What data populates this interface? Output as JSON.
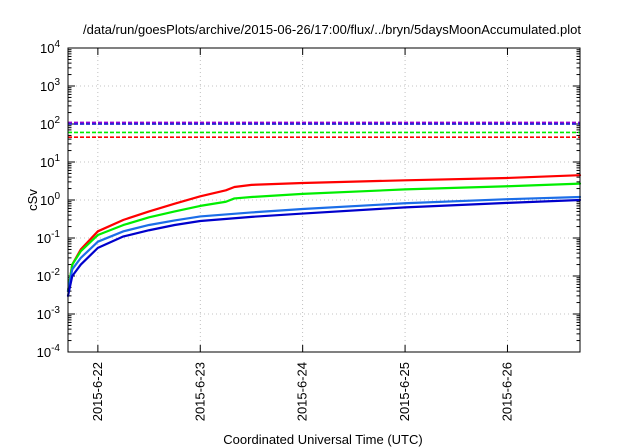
{
  "chart_data": {
    "type": "line",
    "title": "/data/run/goesPlots/archive/2015-06-26/17:00/flux/../bryn/5daysMoonAccumulated.plot",
    "xlabel": "Coordinated Universal Time (UTC)",
    "ylabel": "cSv",
    "x_axis": {
      "type": "time",
      "range": [
        "2015-06-21 17:00",
        "2015-06-26 17:00"
      ],
      "ticks": [
        "2015-6-22",
        "2015-6-23",
        "2015-6-24",
        "2015-6-25",
        "2015-6-26"
      ]
    },
    "y_axis": {
      "scale": "log",
      "ylim": [
        0.0001,
        10000
      ]
    },
    "y_ticks": [
      {
        "base": "10",
        "exp": "4",
        "value": 10000
      },
      {
        "base": "10",
        "exp": "3",
        "value": 1000
      },
      {
        "base": "10",
        "exp": "2",
        "value": 100
      },
      {
        "base": "10",
        "exp": "1",
        "value": 10
      },
      {
        "base": "10",
        "exp": "0",
        "value": 1
      },
      {
        "base": "10",
        "exp": "-1",
        "value": 0.1
      },
      {
        "base": "10",
        "exp": "-2",
        "value": 0.01
      },
      {
        "base": "10",
        "exp": "-3",
        "value": 0.001
      },
      {
        "base": "10",
        "exp": "-4",
        "value": 0.0001
      }
    ],
    "grid": true,
    "legend": false,
    "series": [
      {
        "color": "#ff0000",
        "style": "solid",
        "points": [
          [
            "2015-06-21 17:00",
            0.004
          ],
          [
            "2015-06-21 18:00",
            0.02
          ],
          [
            "2015-06-21 20:00",
            0.05
          ],
          [
            "2015-06-22 00:00",
            0.15
          ],
          [
            "2015-06-22 06:00",
            0.3
          ],
          [
            "2015-06-22 12:00",
            0.5
          ],
          [
            "2015-06-22 18:00",
            0.8
          ],
          [
            "2015-06-23 00:00",
            1.25
          ],
          [
            "2015-06-23 06:00",
            1.8
          ],
          [
            "2015-06-23 08:00",
            2.2
          ],
          [
            "2015-06-23 12:00",
            2.5
          ],
          [
            "2015-06-24 00:00",
            2.8
          ],
          [
            "2015-06-25 00:00",
            3.3
          ],
          [
            "2015-06-26 00:00",
            3.8
          ],
          [
            "2015-06-26 17:00",
            4.5
          ]
        ]
      },
      {
        "color": "#00ee00",
        "style": "solid",
        "points": [
          [
            "2015-06-21 17:00",
            0.004
          ],
          [
            "2015-06-21 18:00",
            0.02
          ],
          [
            "2015-06-21 20:00",
            0.045
          ],
          [
            "2015-06-22 00:00",
            0.12
          ],
          [
            "2015-06-22 06:00",
            0.22
          ],
          [
            "2015-06-22 12:00",
            0.35
          ],
          [
            "2015-06-22 18:00",
            0.5
          ],
          [
            "2015-06-23 00:00",
            0.7
          ],
          [
            "2015-06-23 06:00",
            0.9
          ],
          [
            "2015-06-23 08:00",
            1.1
          ],
          [
            "2015-06-23 12:00",
            1.2
          ],
          [
            "2015-06-24 00:00",
            1.45
          ],
          [
            "2015-06-25 00:00",
            1.9
          ],
          [
            "2015-06-26 00:00",
            2.3
          ],
          [
            "2015-06-26 17:00",
            2.7
          ]
        ]
      },
      {
        "color": "#1c6ee8",
        "style": "solid",
        "points": [
          [
            "2015-06-21 17:00",
            0.004
          ],
          [
            "2015-06-21 18:00",
            0.015
          ],
          [
            "2015-06-21 20:00",
            0.03
          ],
          [
            "2015-06-22 00:00",
            0.08
          ],
          [
            "2015-06-22 06:00",
            0.15
          ],
          [
            "2015-06-22 12:00",
            0.22
          ],
          [
            "2015-06-22 18:00",
            0.29
          ],
          [
            "2015-06-23 00:00",
            0.37
          ],
          [
            "2015-06-23 12:00",
            0.47
          ],
          [
            "2015-06-24 00:00",
            0.58
          ],
          [
            "2015-06-25 00:00",
            0.82
          ],
          [
            "2015-06-26 00:00",
            1.05
          ],
          [
            "2015-06-26 17:00",
            1.2
          ]
        ]
      },
      {
        "color": "#0000cc",
        "style": "solid",
        "points": [
          [
            "2015-06-21 17:00",
            0.003
          ],
          [
            "2015-06-21 18:00",
            0.01
          ],
          [
            "2015-06-21 20:00",
            0.02
          ],
          [
            "2015-06-22 00:00",
            0.055
          ],
          [
            "2015-06-22 06:00",
            0.11
          ],
          [
            "2015-06-22 12:00",
            0.16
          ],
          [
            "2015-06-22 18:00",
            0.22
          ],
          [
            "2015-06-23 00:00",
            0.28
          ],
          [
            "2015-06-23 12:00",
            0.36
          ],
          [
            "2015-06-24 00:00",
            0.44
          ],
          [
            "2015-06-25 00:00",
            0.64
          ],
          [
            "2015-06-26 00:00",
            0.84
          ],
          [
            "2015-06-26 17:00",
            1.0
          ]
        ]
      },
      {
        "color": "#9400d3",
        "style": "dashed",
        "points": [
          [
            "2015-06-21 17:00",
            110
          ],
          [
            "2015-06-26 17:00",
            110
          ]
        ]
      },
      {
        "color": "#0000cc",
        "style": "dashed",
        "points": [
          [
            "2015-06-21 17:00",
            100
          ],
          [
            "2015-06-26 17:00",
            100
          ]
        ]
      },
      {
        "color": "#00ee00",
        "style": "dashed",
        "points": [
          [
            "2015-06-21 17:00",
            60
          ],
          [
            "2015-06-26 17:00",
            60
          ]
        ]
      },
      {
        "color": "#ff0000",
        "style": "dashed",
        "points": [
          [
            "2015-06-21 17:00",
            45
          ],
          [
            "2015-06-26 17:00",
            45
          ]
        ]
      }
    ]
  }
}
